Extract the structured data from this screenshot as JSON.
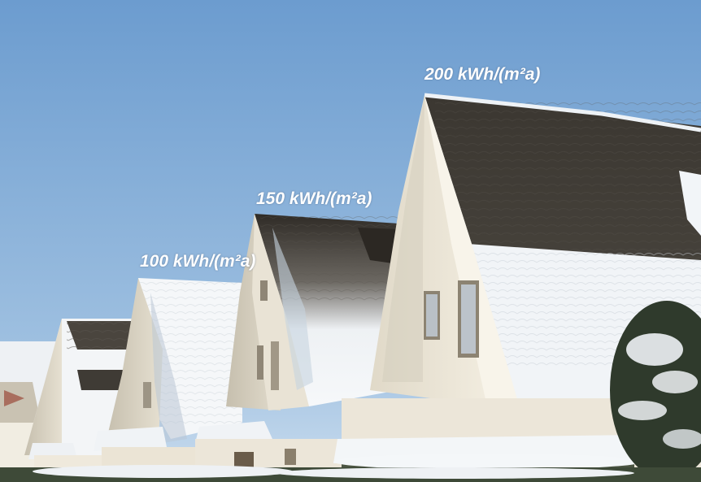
{
  "labels": {
    "label_200": "200 kWh/(m²a)",
    "label_150": "150 kWh/(m²a)",
    "label_100": "100 kWh/(m²a)"
  },
  "colors": {
    "sky_top": "#6f9fd0",
    "sky_bottom": "#c4d9ec",
    "roof_dark": "#3d3a35",
    "snow": "#f4f6f8",
    "wall_light": "#f2ecdf",
    "wall_shade": "#cfc8b8"
  }
}
